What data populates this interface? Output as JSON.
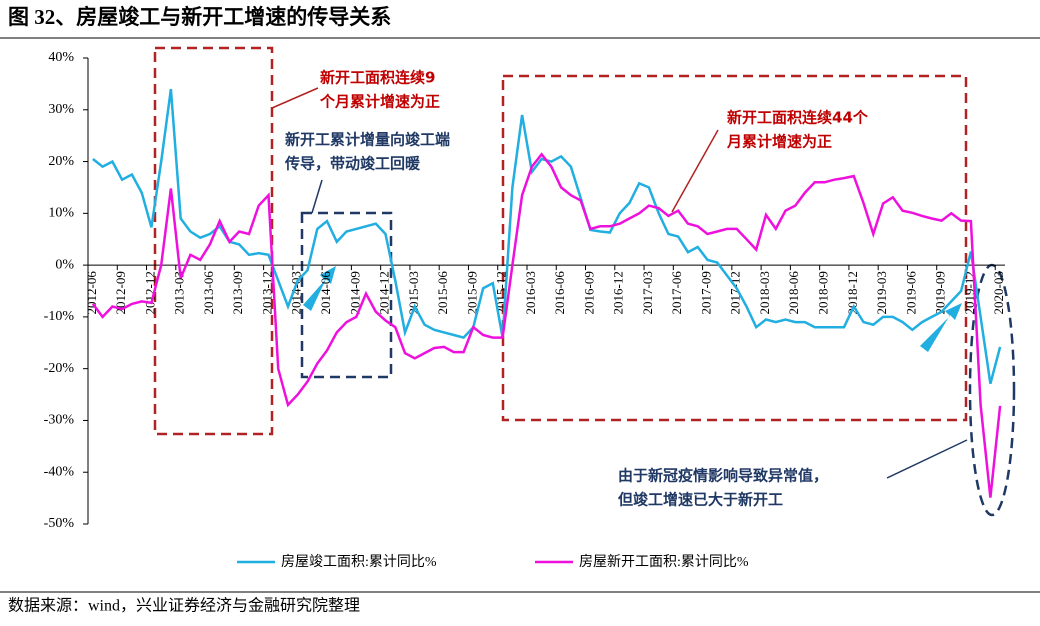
{
  "chart_data": {
    "type": "line",
    "title": "图 32、房屋竣工与新开工增速的传导关系",
    "source": "数据来源：wind，兴业证券经济与金融研究院整理",
    "annotations": [
      {
        "color": "#c00000",
        "lines": [
          "新开工面积连续9",
          "个月累计增速为正"
        ]
      },
      {
        "color": "#1f3864",
        "lines": [
          "新开工累计增量向竣工端",
          "传导，带动竣工回暖"
        ]
      },
      {
        "color": "#c00000",
        "lines": [
          "新开工面积连续44个",
          "月累计增速为正"
        ]
      },
      {
        "color": "#1f3864",
        "lines": [
          "由于新冠疫情影响导致异常值，",
          "但竣工增速已大于新开工"
        ]
      }
    ],
    "categories": [
      "2012-06",
      null,
      null,
      "2012-09",
      null,
      null,
      "2012-12",
      null,
      null,
      "2013-03",
      null,
      null,
      "2013-06",
      null,
      null,
      "2013-09",
      null,
      null,
      "2013-12",
      null,
      null,
      "2014-03",
      null,
      null,
      "2014-06",
      null,
      null,
      "2014-09",
      null,
      null,
      "2014-12",
      null,
      null,
      "2015-03",
      null,
      null,
      "2015-06",
      null,
      null,
      "2015-09",
      null,
      null,
      "2015-12",
      null,
      null,
      "2016-03",
      null,
      null,
      "2016-06",
      null,
      null,
      "2016-09",
      null,
      null,
      "2016-12",
      null,
      null,
      "2017-03",
      null,
      null,
      "2017-06",
      null,
      null,
      "2017-09",
      null,
      null,
      "2017-12",
      null,
      null,
      "2018-03",
      null,
      null,
      "2018-06",
      null,
      null,
      "2018-09",
      null,
      null,
      "2018-12",
      null,
      null,
      "2019-03",
      null,
      null,
      "2019-06",
      null,
      null,
      "2019-09",
      null,
      null,
      "2019-12",
      null,
      null,
      "2020-03"
    ],
    "series": [
      {
        "name": "房屋竣工面积:累计同比%",
        "color": "#21aee0",
        "values": [
          20.5,
          19,
          20,
          16.5,
          17.5,
          14,
          7.3,
          20,
          34,
          9,
          6.5,
          5.3,
          6,
          7.5,
          4.5,
          4,
          2,
          2.3,
          2,
          -3,
          -8,
          -3,
          -1,
          7,
          8.5,
          4.5,
          6.5,
          7,
          7.5,
          8,
          6,
          -3,
          -13,
          -8,
          -11.5,
          -12.5,
          -13,
          -13.5,
          -14,
          -12,
          -4.5,
          -3.5,
          -14,
          15,
          29,
          18,
          20.5,
          20,
          21,
          19,
          13,
          6.8,
          6.5,
          6.3,
          10,
          12,
          15.8,
          15,
          10,
          6,
          5.5,
          2.5,
          3.5,
          1,
          0.5,
          -2,
          -4.5,
          -8,
          -12,
          -10.5,
          -11,
          -10.5,
          -11,
          -11,
          -12,
          -12,
          -12,
          -12,
          -8,
          -11,
          -11.5,
          -10,
          -10,
          -11,
          -12.5,
          -11,
          -10,
          -9,
          -7,
          -5,
          2.6,
          -10,
          -22.9,
          -15.8
        ]
      },
      {
        "name": "房屋新开工面积:累计同比%",
        "color": "#ee11dd",
        "values": [
          -7.5,
          -10,
          -8,
          -8.5,
          -7.5,
          -7,
          -7.3,
          0,
          14.8,
          -2.5,
          2,
          1,
          4,
          8.5,
          4.5,
          6.5,
          6,
          11.5,
          13.5,
          -20,
          -27,
          -25,
          -22.5,
          -19,
          -16.5,
          -13,
          -11,
          -10,
          -5.5,
          -9,
          -10.7,
          -12,
          -17,
          -18,
          -17,
          -16,
          -15.8,
          -16.8,
          -16.8,
          -12,
          -13.5,
          -14,
          -14,
          0,
          13.5,
          19,
          21.4,
          19,
          15,
          13.5,
          12.5,
          7,
          7.5,
          7.5,
          8,
          9,
          10,
          11.5,
          11,
          9.5,
          10.5,
          8,
          7.5,
          6,
          6.5,
          7,
          7,
          5,
          3,
          9.7,
          7,
          10.5,
          11.5,
          14,
          16,
          16,
          16.5,
          16.8,
          17.2,
          12,
          6,
          11.9,
          13.1,
          10.5,
          10.1,
          9.5,
          9,
          8.6,
          10,
          8.6,
          8.5,
          -27,
          -44.9,
          -27.2
        ]
      }
    ],
    "ylim": [
      -50,
      40
    ],
    "yticks": [
      {
        "value": 40,
        "label": "40%"
      },
      {
        "value": 30,
        "label": "30%"
      },
      {
        "value": 20,
        "label": "20%"
      },
      {
        "value": 10,
        "label": "10%"
      },
      {
        "value": 0,
        "label": "0%"
      },
      {
        "value": -10,
        "label": "-10%"
      },
      {
        "value": -20,
        "label": "-20%"
      },
      {
        "value": -30,
        "label": "-30%"
      },
      {
        "value": -40,
        "label": "-40%"
      },
      {
        "value": -50,
        "label": "-50%"
      }
    ],
    "legend": "bottom"
  }
}
